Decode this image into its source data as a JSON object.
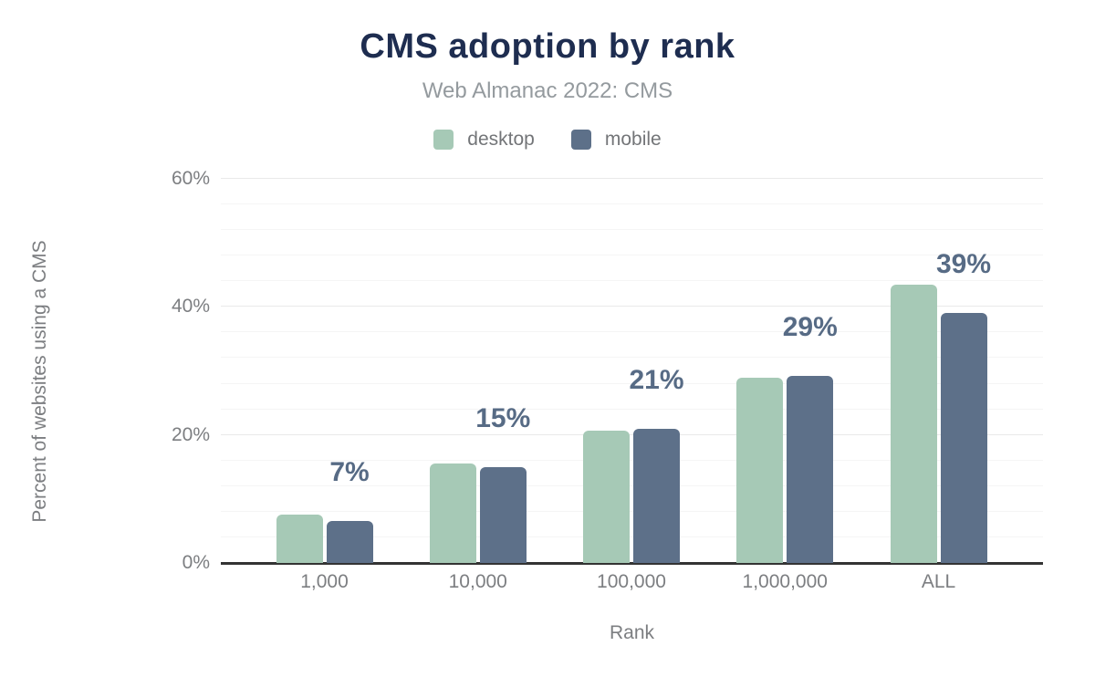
{
  "chart_data": {
    "type": "bar",
    "title": "CMS adoption by rank",
    "subtitle": "Web Almanac 2022: CMS",
    "xlabel": "Rank",
    "ylabel": "Percent of websites using a CMS",
    "categories": [
      "1,000",
      "10,000",
      "100,000",
      "1,000,000",
      "ALL"
    ],
    "series": [
      {
        "name": "desktop",
        "color": "#a6c9b6",
        "values": [
          7.5,
          15.5,
          20.7,
          29.0,
          43.4
        ]
      },
      {
        "name": "mobile",
        "color": "#5d7089",
        "values": [
          6.6,
          15.0,
          21.0,
          29.2,
          39.0
        ]
      }
    ],
    "bar_labels": {
      "series": "mobile",
      "texts": [
        "7%",
        "15%",
        "21%",
        "29%",
        "39%"
      ]
    },
    "ylim": [
      0,
      60
    ],
    "yticks": [
      {
        "value": 0,
        "label": "0%"
      },
      {
        "value": 20,
        "label": "20%"
      },
      {
        "value": 40,
        "label": "40%"
      },
      {
        "value": 60,
        "label": "60%"
      }
    ],
    "grid": {
      "orientation": "horizontal",
      "minor_step": 4,
      "major_step": 20
    },
    "legend_position": "top"
  },
  "colors": {
    "title": "#1e2d50",
    "subtitle": "#949a9e",
    "axis_text": "#7c7e81",
    "value_label": "#576b85",
    "axis_line": "#333333",
    "gridline_minor": "#f5f5f5",
    "gridline_major": "#e9e9e9",
    "desktop": "#a6c9b6",
    "mobile": "#5d7089"
  }
}
